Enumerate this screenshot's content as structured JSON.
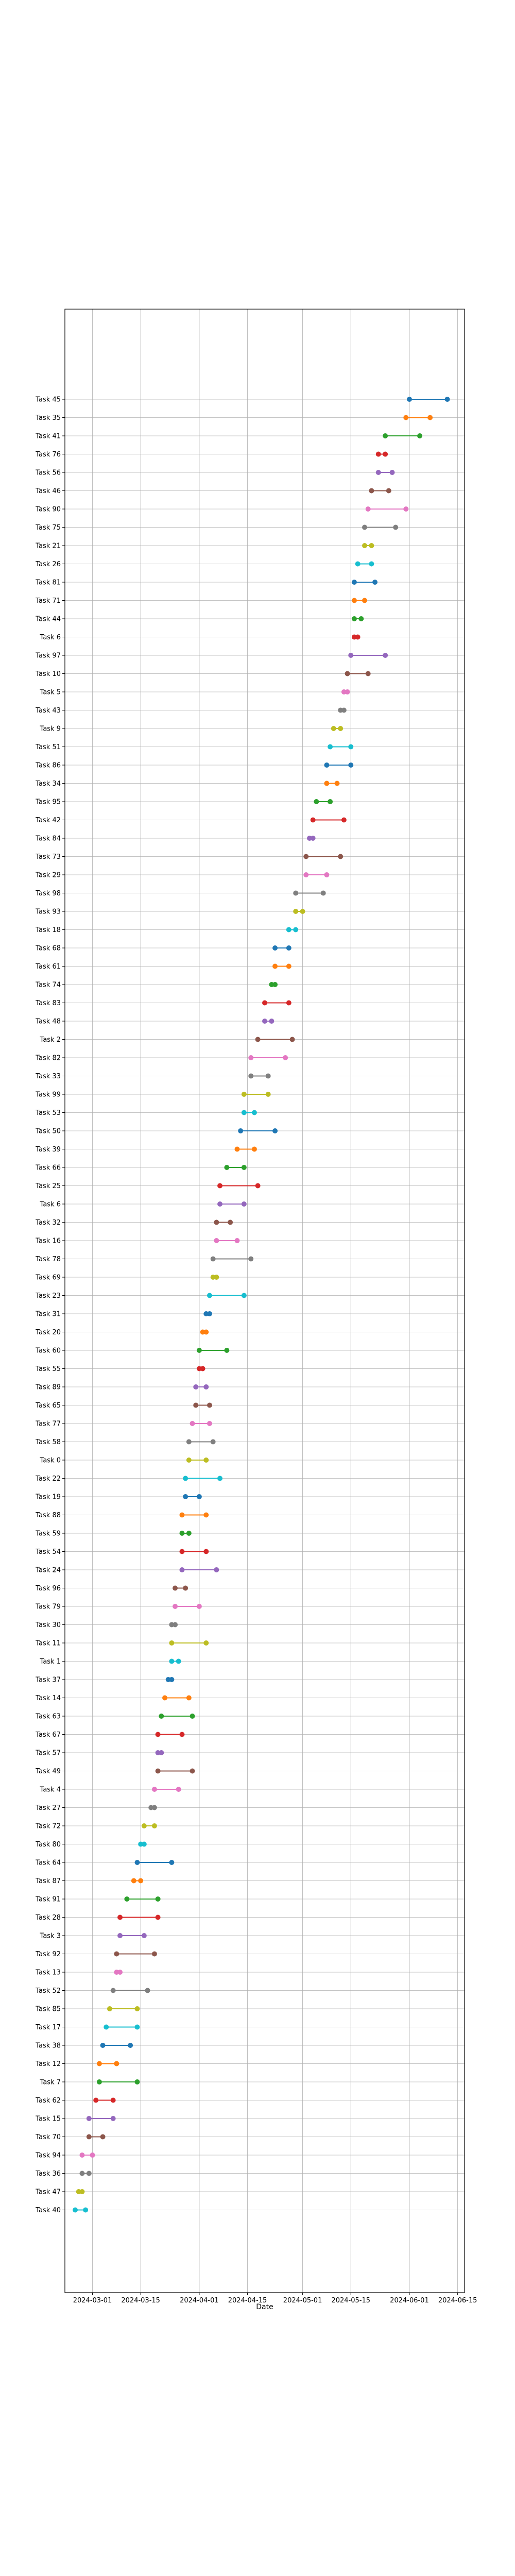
{
  "chart_data": {
    "type": "dumbbell",
    "xlabel": "Date",
    "ylabel": "",
    "title": "",
    "grid": true,
    "x_ticks": [
      "2024-03-01",
      "2024-03-15",
      "2024-04-01",
      "2024-04-15",
      "2024-05-01",
      "2024-05-15",
      "2024-06-01",
      "2024-06-15"
    ],
    "xlim": [
      "2024-02-22",
      "2024-06-17"
    ],
    "palette": [
      "#1f77b4",
      "#ff7f0e",
      "#2ca02c",
      "#d62728",
      "#9467bd",
      "#8c564b",
      "#e377c2",
      "#7f7f7f",
      "#bcbd22",
      "#17becf"
    ],
    "tasks": [
      {
        "label": "Task 45",
        "start": "2024-06-01",
        "end": "2024-06-12"
      },
      {
        "label": "Task 35",
        "start": "2024-05-31",
        "end": "2024-06-07"
      },
      {
        "label": "Task 41",
        "start": "2024-05-25",
        "end": "2024-06-04"
      },
      {
        "label": "Task 76",
        "start": "2024-05-23",
        "end": "2024-05-25"
      },
      {
        "label": "Task 56",
        "start": "2024-05-23",
        "end": "2024-05-27"
      },
      {
        "label": "Task 46",
        "start": "2024-05-21",
        "end": "2024-05-26"
      },
      {
        "label": "Task 90",
        "start": "2024-05-20",
        "end": "2024-05-31"
      },
      {
        "label": "Task 75",
        "start": "2024-05-19",
        "end": "2024-05-28"
      },
      {
        "label": "Task 21",
        "start": "2024-05-19",
        "end": "2024-05-21"
      },
      {
        "label": "Task 26",
        "start": "2024-05-17",
        "end": "2024-05-21"
      },
      {
        "label": "Task 81",
        "start": "2024-05-16",
        "end": "2024-05-22"
      },
      {
        "label": "Task 71",
        "start": "2024-05-16",
        "end": "2024-05-19"
      },
      {
        "label": "Task 44",
        "start": "2024-05-16",
        "end": "2024-05-18"
      },
      {
        "label": "Task 6",
        "start": "2024-05-16",
        "end": "2024-05-17"
      },
      {
        "label": "Task 97",
        "start": "2024-05-15",
        "end": "2024-05-25"
      },
      {
        "label": "Task 10",
        "start": "2024-05-14",
        "end": "2024-05-20"
      },
      {
        "label": "Task 5",
        "start": "2024-05-13",
        "end": "2024-05-14"
      },
      {
        "label": "Task 43",
        "start": "2024-05-12",
        "end": "2024-05-13"
      },
      {
        "label": "Task 9",
        "start": "2024-05-10",
        "end": "2024-05-12"
      },
      {
        "label": "Task 51",
        "start": "2024-05-09",
        "end": "2024-05-15"
      },
      {
        "label": "Task 86",
        "start": "2024-05-08",
        "end": "2024-05-15"
      },
      {
        "label": "Task 34",
        "start": "2024-05-08",
        "end": "2024-05-11"
      },
      {
        "label": "Task 95",
        "start": "2024-05-05",
        "end": "2024-05-09"
      },
      {
        "label": "Task 42",
        "start": "2024-05-04",
        "end": "2024-05-13"
      },
      {
        "label": "Task 84",
        "start": "2024-05-03",
        "end": "2024-05-04"
      },
      {
        "label": "Task 73",
        "start": "2024-05-02",
        "end": "2024-05-12"
      },
      {
        "label": "Task 29",
        "start": "2024-05-02",
        "end": "2024-05-08"
      },
      {
        "label": "Task 98",
        "start": "2024-04-29",
        "end": "2024-05-07"
      },
      {
        "label": "Task 93",
        "start": "2024-04-29",
        "end": "2024-05-01"
      },
      {
        "label": "Task 18",
        "start": "2024-04-27",
        "end": "2024-04-29"
      },
      {
        "label": "Task 68",
        "start": "2024-04-23",
        "end": "2024-04-27"
      },
      {
        "label": "Task 61",
        "start": "2024-04-23",
        "end": "2024-04-27"
      },
      {
        "label": "Task 74",
        "start": "2024-04-22",
        "end": "2024-04-23"
      },
      {
        "label": "Task 83",
        "start": "2024-04-20",
        "end": "2024-04-27"
      },
      {
        "label": "Task 48",
        "start": "2024-04-20",
        "end": "2024-04-22"
      },
      {
        "label": "Task 2",
        "start": "2024-04-18",
        "end": "2024-04-28"
      },
      {
        "label": "Task 82",
        "start": "2024-04-16",
        "end": "2024-04-26"
      },
      {
        "label": "Task 33",
        "start": "2024-04-16",
        "end": "2024-04-21"
      },
      {
        "label": "Task 99",
        "start": "2024-04-14",
        "end": "2024-04-21"
      },
      {
        "label": "Task 53",
        "start": "2024-04-14",
        "end": "2024-04-17"
      },
      {
        "label": "Task 50",
        "start": "2024-04-13",
        "end": "2024-04-23"
      },
      {
        "label": "Task 39",
        "start": "2024-04-12",
        "end": "2024-04-17"
      },
      {
        "label": "Task 66",
        "start": "2024-04-09",
        "end": "2024-04-14"
      },
      {
        "label": "Task 25",
        "start": "2024-04-07",
        "end": "2024-04-18"
      },
      {
        "label": "Task 6",
        "start": "2024-04-07",
        "end": "2024-04-14"
      },
      {
        "label": "Task 32",
        "start": "2024-04-06",
        "end": "2024-04-10"
      },
      {
        "label": "Task 16",
        "start": "2024-04-06",
        "end": "2024-04-12"
      },
      {
        "label": "Task 78",
        "start": "2024-04-05",
        "end": "2024-04-16"
      },
      {
        "label": "Task 69",
        "start": "2024-04-05",
        "end": "2024-04-06"
      },
      {
        "label": "Task 23",
        "start": "2024-04-04",
        "end": "2024-04-14"
      },
      {
        "label": "Task 31",
        "start": "2024-04-03",
        "end": "2024-04-04"
      },
      {
        "label": "Task 20",
        "start": "2024-04-02",
        "end": "2024-04-03"
      },
      {
        "label": "Task 60",
        "start": "2024-04-01",
        "end": "2024-04-09"
      },
      {
        "label": "Task 55",
        "start": "2024-04-01",
        "end": "2024-04-02"
      },
      {
        "label": "Task 89",
        "start": "2024-03-31",
        "end": "2024-04-03"
      },
      {
        "label": "Task 65",
        "start": "2024-03-31",
        "end": "2024-04-04"
      },
      {
        "label": "Task 77",
        "start": "2024-03-30",
        "end": "2024-04-04"
      },
      {
        "label": "Task 58",
        "start": "2024-03-29",
        "end": "2024-04-05"
      },
      {
        "label": "Task 0",
        "start": "2024-03-29",
        "end": "2024-04-03"
      },
      {
        "label": "Task 22",
        "start": "2024-03-28",
        "end": "2024-04-07"
      },
      {
        "label": "Task 19",
        "start": "2024-03-28",
        "end": "2024-04-01"
      },
      {
        "label": "Task 88",
        "start": "2024-03-27",
        "end": "2024-04-03"
      },
      {
        "label": "Task 59",
        "start": "2024-03-27",
        "end": "2024-03-29"
      },
      {
        "label": "Task 54",
        "start": "2024-03-27",
        "end": "2024-04-03"
      },
      {
        "label": "Task 24",
        "start": "2024-03-27",
        "end": "2024-04-06"
      },
      {
        "label": "Task 96",
        "start": "2024-03-25",
        "end": "2024-03-28"
      },
      {
        "label": "Task 79",
        "start": "2024-03-25",
        "end": "2024-04-01"
      },
      {
        "label": "Task 30",
        "start": "2024-03-24",
        "end": "2024-03-25"
      },
      {
        "label": "Task 11",
        "start": "2024-03-24",
        "end": "2024-04-03"
      },
      {
        "label": "Task 1",
        "start": "2024-03-24",
        "end": "2024-03-26"
      },
      {
        "label": "Task 37",
        "start": "2024-03-23",
        "end": "2024-03-24"
      },
      {
        "label": "Task 14",
        "start": "2024-03-22",
        "end": "2024-03-29"
      },
      {
        "label": "Task 63",
        "start": "2024-03-21",
        "end": "2024-03-30"
      },
      {
        "label": "Task 67",
        "start": "2024-03-20",
        "end": "2024-03-27"
      },
      {
        "label": "Task 57",
        "start": "2024-03-20",
        "end": "2024-03-21"
      },
      {
        "label": "Task 49",
        "start": "2024-03-20",
        "end": "2024-03-30"
      },
      {
        "label": "Task 4",
        "start": "2024-03-19",
        "end": "2024-03-26"
      },
      {
        "label": "Task 27",
        "start": "2024-03-18",
        "end": "2024-03-19"
      },
      {
        "label": "Task 72",
        "start": "2024-03-16",
        "end": "2024-03-19"
      },
      {
        "label": "Task 80",
        "start": "2024-03-15",
        "end": "2024-03-16"
      },
      {
        "label": "Task 64",
        "start": "2024-03-14",
        "end": "2024-03-24"
      },
      {
        "label": "Task 87",
        "start": "2024-03-13",
        "end": "2024-03-15"
      },
      {
        "label": "Task 91",
        "start": "2024-03-11",
        "end": "2024-03-20"
      },
      {
        "label": "Task 28",
        "start": "2024-03-09",
        "end": "2024-03-20"
      },
      {
        "label": "Task 3",
        "start": "2024-03-09",
        "end": "2024-03-16"
      },
      {
        "label": "Task 92",
        "start": "2024-03-08",
        "end": "2024-03-19"
      },
      {
        "label": "Task 13",
        "start": "2024-03-08",
        "end": "2024-03-09"
      },
      {
        "label": "Task 52",
        "start": "2024-03-07",
        "end": "2024-03-17"
      },
      {
        "label": "Task 85",
        "start": "2024-03-06",
        "end": "2024-03-14"
      },
      {
        "label": "Task 17",
        "start": "2024-03-05",
        "end": "2024-03-14"
      },
      {
        "label": "Task 38",
        "start": "2024-03-04",
        "end": "2024-03-12"
      },
      {
        "label": "Task 12",
        "start": "2024-03-03",
        "end": "2024-03-08"
      },
      {
        "label": "Task 7",
        "start": "2024-03-03",
        "end": "2024-03-14"
      },
      {
        "label": "Task 62",
        "start": "2024-03-02",
        "end": "2024-03-07"
      },
      {
        "label": "Task 15",
        "start": "2024-02-29",
        "end": "2024-03-07"
      },
      {
        "label": "Task 70",
        "start": "2024-02-29",
        "end": "2024-03-04"
      },
      {
        "label": "Task 94",
        "start": "2024-02-27",
        "end": "2024-03-01"
      },
      {
        "label": "Task 36",
        "start": "2024-02-27",
        "end": "2024-02-29"
      },
      {
        "label": "Task 47",
        "start": "2024-02-26",
        "end": "2024-02-27"
      },
      {
        "label": "Task 40",
        "start": "2024-02-25",
        "end": "2024-02-28"
      }
    ]
  }
}
